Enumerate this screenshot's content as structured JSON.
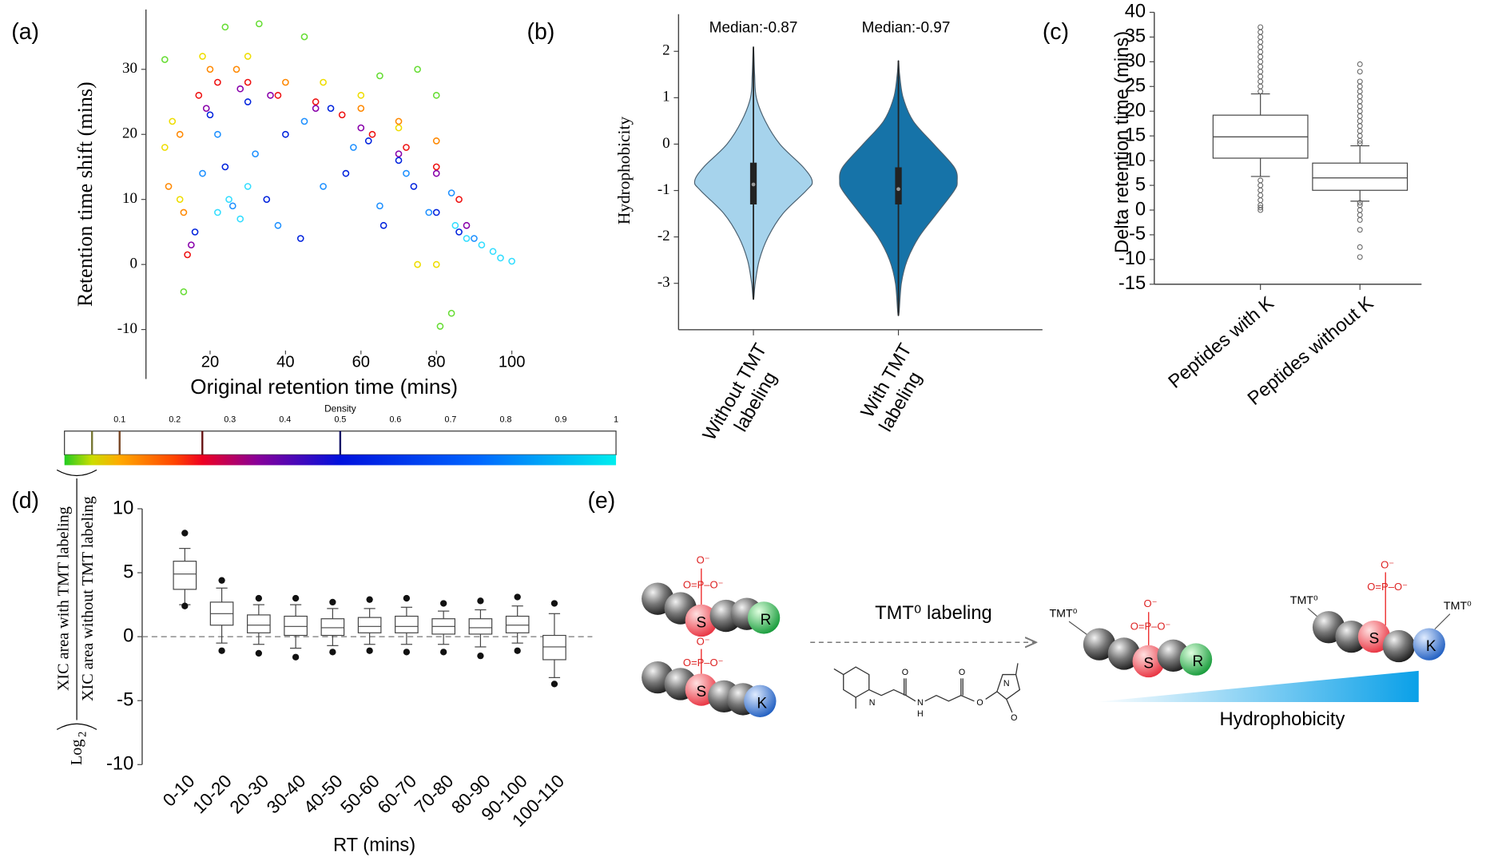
{
  "chart_data": [
    {
      "type": "scatter",
      "panel": "(a)",
      "xlabel": "Original retention time (mins)",
      "ylabel": "Retention time shift (mins)",
      "xlim": [
        3,
        104
      ],
      "ylim": [
        -17.6,
        39.2
      ],
      "xticks": [
        20,
        40,
        60,
        80,
        100
      ],
      "yticks": [
        -10,
        0,
        10,
        20,
        30
      ],
      "series": [
        {
          "color": "#eedd00",
          "x": [
            8,
            10,
            12,
            18,
            30,
            50,
            60,
            70,
            75,
            80
          ],
          "y": [
            18,
            22,
            10,
            32,
            32,
            28,
            26,
            21,
            0,
            0
          ]
        },
        {
          "color": "#ff8800",
          "x": [
            9,
            12,
            13,
            20,
            27,
            40,
            60,
            70,
            80
          ],
          "y": [
            12,
            20,
            8,
            30,
            30,
            28,
            24,
            22,
            19
          ]
        },
        {
          "color": "#66dd33",
          "x": [
            8,
            24,
            33,
            45,
            65,
            80,
            75,
            81,
            84,
            13
          ],
          "y": [
            31.5,
            36.5,
            37,
            35,
            29,
            26,
            30,
            -9.5,
            -7.5,
            -4.2
          ]
        },
        {
          "color": "#ee1111",
          "x": [
            14,
            17,
            22,
            30,
            38,
            48,
            55,
            63,
            72,
            80,
            86
          ],
          "y": [
            1.5,
            26,
            28,
            28,
            26,
            25,
            23,
            20,
            18,
            15,
            10
          ]
        },
        {
          "color": "#8800aa",
          "x": [
            15,
            19,
            28,
            36,
            48,
            60,
            70,
            80,
            88
          ],
          "y": [
            3,
            24,
            27,
            26,
            24,
            21,
            17,
            14,
            6
          ]
        },
        {
          "color": "#0022dd",
          "x": [
            16,
            20,
            24,
            30,
            35,
            40,
            44,
            52,
            56,
            62,
            66,
            70,
            74,
            80,
            86
          ],
          "y": [
            5,
            23,
            15,
            25,
            10,
            20,
            4,
            24,
            14,
            19,
            6,
            16,
            12,
            8,
            5
          ]
        },
        {
          "color": "#1e90ff",
          "x": [
            18,
            22,
            26,
            32,
            38,
            45,
            50,
            58,
            65,
            72,
            78,
            84,
            90
          ],
          "y": [
            14,
            20,
            9,
            17,
            6,
            22,
            12,
            18,
            9,
            14,
            8,
            11,
            4
          ]
        },
        {
          "color": "#33ddff",
          "x": [
            22,
            25,
            28,
            30,
            85,
            88,
            92,
            95,
            97,
            100
          ],
          "y": [
            8,
            10,
            7,
            12,
            6,
            4,
            3,
            2,
            1,
            0.5
          ]
        }
      ],
      "colorbar": {
        "label": "Density",
        "lim": [
          0,
          1
        ],
        "ticks": [
          0.1,
          0.2,
          0.3,
          0.4,
          0.5,
          0.6,
          0.7,
          0.8,
          0.9,
          1
        ],
        "stops": [
          0,
          0.05,
          0.1,
          0.2,
          0.25,
          0.35,
          0.5,
          0.75,
          1
        ],
        "stop_colors": [
          "#22cc22",
          "#ccdd00",
          "#ffaa00",
          "#ff4400",
          "#ee0022",
          "#880099",
          "#0011dd",
          "#0066ff",
          "#00eeee"
        ],
        "markers": [
          0.05,
          0.1,
          0.25,
          0.5
        ],
        "marker_colors": [
          "#777733",
          "#774422",
          "#661111",
          "#111166"
        ]
      }
    },
    {
      "type": "violin",
      "panel": "(b)",
      "ylabel": "Hydrophobicity",
      "ylim": [
        -4,
        2.8
      ],
      "yticks": [
        -3,
        -2,
        -1,
        0,
        1,
        2
      ],
      "categories": [
        "Without TMT labeling",
        "With TMT labeling"
      ],
      "annotations": [
        "Median:-0.87",
        "Median:-0.97"
      ],
      "violins": [
        {
          "color": "#a6d3ec",
          "median": -0.87,
          "q1": -1.3,
          "q3": -0.4,
          "min": -3.35,
          "max": 2.1,
          "kde_y": [
            -3.35,
            -3,
            -2.5,
            -2,
            -1.5,
            -1,
            -0.8,
            -0.5,
            0,
            0.5,
            1,
            1.5,
            2.1
          ],
          "kde_width": [
            0,
            0.03,
            0.1,
            0.25,
            0.5,
            0.9,
            1,
            0.85,
            0.45,
            0.2,
            0.05,
            0.02,
            0
          ]
        },
        {
          "color": "#1673a8",
          "median": -0.97,
          "q1": -1.3,
          "q3": -0.5,
          "min": -3.7,
          "max": 1.8,
          "kde_y": [
            -3.7,
            -3,
            -2.5,
            -2,
            -1.5,
            -1,
            -0.8,
            -0.5,
            0,
            0.5,
            1,
            1.5,
            1.8
          ],
          "kde_width": [
            0,
            0.05,
            0.15,
            0.35,
            0.65,
            0.95,
            1,
            0.95,
            0.6,
            0.25,
            0.08,
            0.02,
            0
          ]
        }
      ]
    },
    {
      "type": "box",
      "panel": "(c)",
      "ylabel": "Delta retention time (mins)",
      "ylim": [
        -15,
        40
      ],
      "yticks": [
        -15,
        -10,
        -5,
        0,
        5,
        10,
        15,
        20,
        25,
        30,
        35,
        40
      ],
      "categories": [
        "Peptides with K",
        "Peptides without K"
      ],
      "boxes": [
        {
          "low": 6.8,
          "q1": 10.5,
          "median": 14.8,
          "q3": 19.2,
          "high": 23.5,
          "outliers": [
            24,
            25,
            26,
            27,
            28,
            29,
            30,
            31,
            32,
            33,
            34,
            35,
            36,
            37,
            6,
            5,
            4,
            3,
            2,
            1,
            0.5,
            0
          ]
        },
        {
          "low": 1.8,
          "q1": 4,
          "median": 6.5,
          "q3": 9.5,
          "high": 13,
          "outliers": [
            13.5,
            14,
            15,
            16,
            17,
            18,
            19,
            20,
            21,
            22,
            23,
            24,
            25,
            26,
            28,
            29.5,
            1.5,
            1,
            0,
            -1,
            -2,
            -4,
            -7.5,
            -9.5
          ]
        }
      ]
    },
    {
      "type": "box",
      "panel": "(d)",
      "xlabel": "RT (mins)",
      "ylabel_log": "Log",
      "ylabel_base": "2",
      "ylabel_numerator": "XIC area with TMT labeling",
      "ylabel_denominator": "XIC area without TMT labeling",
      "ylim": [
        -10,
        10
      ],
      "yticks": [
        -10,
        -5,
        0,
        5,
        10
      ],
      "hline": 0,
      "categories": [
        "0-10",
        "10-20",
        "20-30",
        "30-40",
        "40-50",
        "50-60",
        "60-70",
        "70-80",
        "80-90",
        "90-100",
        "100-110"
      ],
      "boxes": [
        {
          "low": 2.5,
          "q1": 3.7,
          "median": 4.9,
          "q3": 5.9,
          "high": 6.9,
          "outliers": [
            8.1,
            2.4
          ]
        },
        {
          "low": -0.5,
          "q1": 0.9,
          "median": 1.8,
          "q3": 2.7,
          "high": 3.8,
          "outliers": [
            4.4,
            -1.1
          ]
        },
        {
          "low": -0.6,
          "q1": 0.3,
          "median": 0.9,
          "q3": 1.7,
          "high": 2.5,
          "outliers": [
            3.0,
            -1.3
          ]
        },
        {
          "low": -0.9,
          "q1": 0.1,
          "median": 0.8,
          "q3": 1.6,
          "high": 2.5,
          "outliers": [
            3.0,
            -1.6
          ]
        },
        {
          "low": -0.7,
          "q1": 0.1,
          "median": 0.7,
          "q3": 1.4,
          "high": 2.2,
          "outliers": [
            2.7,
            -1.2
          ]
        },
        {
          "low": -0.6,
          "q1": 0.3,
          "median": 0.8,
          "q3": 1.5,
          "high": 2.2,
          "outliers": [
            2.9,
            -1.1
          ]
        },
        {
          "low": -0.6,
          "q1": 0.3,
          "median": 0.8,
          "q3": 1.6,
          "high": 2.3,
          "outliers": [
            3.0,
            -1.2
          ]
        },
        {
          "low": -0.6,
          "q1": 0.2,
          "median": 0.8,
          "q3": 1.4,
          "high": 2.0,
          "outliers": [
            2.6,
            -1.2
          ]
        },
        {
          "low": -0.8,
          "q1": 0.2,
          "median": 0.7,
          "q3": 1.4,
          "high": 2.1,
          "outliers": [
            2.8,
            -1.5
          ]
        },
        {
          "low": -0.5,
          "q1": 0.3,
          "median": 0.9,
          "q3": 1.6,
          "high": 2.4,
          "outliers": [
            3.1,
            -1.1
          ]
        },
        {
          "low": -3.2,
          "q1": -1.8,
          "median": -0.8,
          "q3": 0.1,
          "high": 1.8,
          "outliers": [
            2.6,
            -3.7
          ]
        }
      ]
    }
  ],
  "diagram": {
    "panel": "(e)",
    "arrow_label": "TMT⁰ labeling",
    "gradient_label": "Hydrophobicity",
    "tag": "TMT⁰",
    "residue_s": "S",
    "residue_r": "R",
    "residue_k": "K",
    "phosphate_oxygen": "O⁻",
    "phosphate_group": "O=P–O⁻",
    "structure_atoms": [
      "N",
      "O",
      "N",
      "H",
      "O",
      "O",
      "N",
      "O"
    ]
  }
}
